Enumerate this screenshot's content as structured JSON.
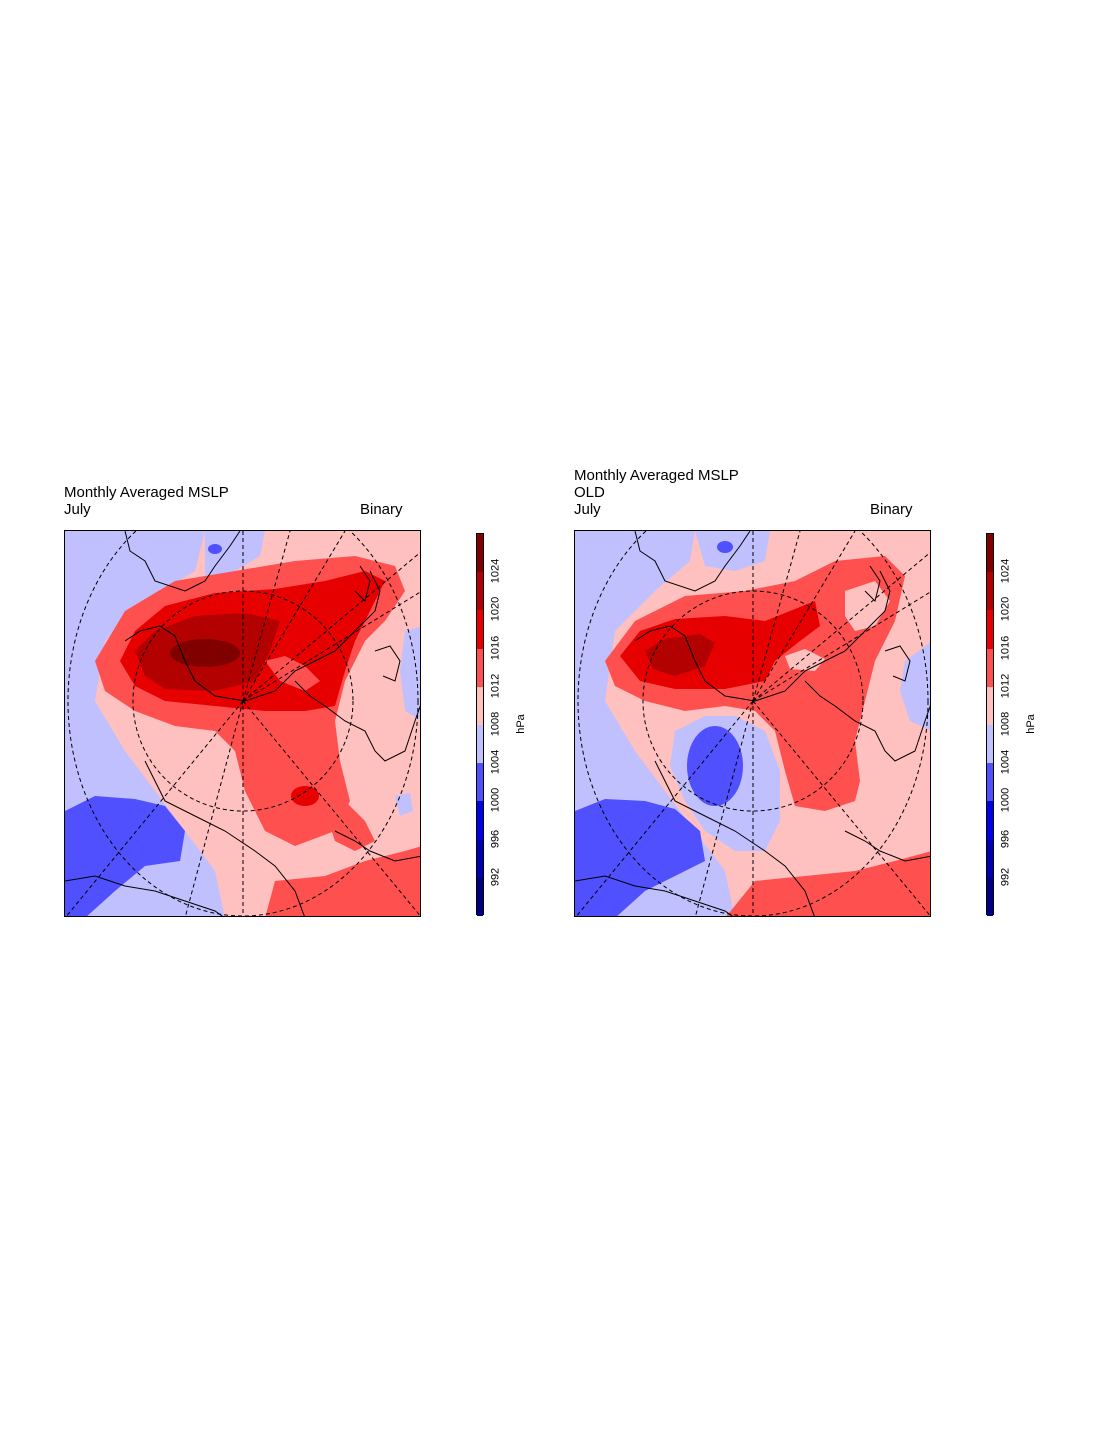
{
  "colors": {
    "levels": [
      "#000080",
      "#0000b3",
      "#0000e6",
      "#5050ff",
      "#c0c0ff",
      "#ffc0c0",
      "#ff5050",
      "#e60000",
      "#b30000",
      "#800000"
    ],
    "land_outline": "#000000",
    "grid_line": "#000000"
  },
  "colorbar": {
    "ticks": [
      "992",
      "996",
      "1000",
      "1004",
      "1008",
      "1012",
      "1016",
      "1020",
      "1024"
    ],
    "unit": "hPa"
  },
  "panels": [
    {
      "title": "Monthly Averaged MSLP",
      "subtitle": "",
      "left_label": "July",
      "right_label": "Binary"
    },
    {
      "title": "Monthly Averaged MSLP",
      "subtitle": "OLD",
      "left_label": "July",
      "right_label": "Binary"
    }
  ]
}
